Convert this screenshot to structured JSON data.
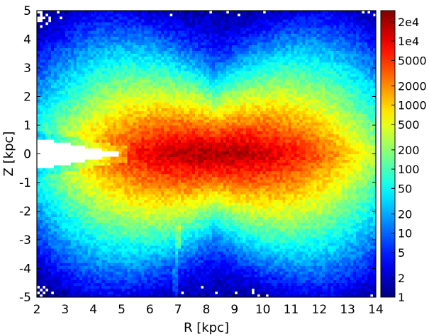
{
  "chart_data": {
    "type": "heatmap",
    "title": "",
    "xlabel": "R [kpc]",
    "ylabel": "Z [kpc]",
    "xlim": [
      2,
      14
    ],
    "ylim": [
      -5,
      5
    ],
    "x_ticks": [
      2,
      3,
      4,
      5,
      6,
      7,
      8,
      9,
      10,
      11,
      12,
      13,
      14
    ],
    "x_tick_labels": [
      "2",
      "3",
      "4",
      "5",
      "6",
      "7",
      "8",
      "9",
      "10",
      "11",
      "12",
      "13",
      "14"
    ],
    "y_ticks": [
      -5,
      -4,
      -3,
      -2,
      -1,
      0,
      1,
      2,
      3,
      4,
      5
    ],
    "y_tick_labels": [
      "-5",
      "-4",
      "-3",
      "-2",
      "-1",
      "0",
      "1",
      "2",
      "3",
      "4",
      "5"
    ],
    "bins": {
      "nx": 120,
      "ny": 100
    },
    "colorbar": {
      "scale": "log",
      "min": 1,
      "max": 30000,
      "ticks": [
        1,
        2,
        5,
        10,
        20,
        50,
        100,
        200,
        500,
        1000,
        2000,
        5000,
        10000,
        20000
      ],
      "tick_labels": [
        "1",
        "2",
        "5",
        "10",
        "20",
        "50",
        "100",
        "200",
        "500",
        "1000",
        "2000",
        "5000",
        "1e4",
        "2e4"
      ],
      "colormap": "jet",
      "colors": [
        "#00007f",
        "#0000ff",
        "#007fff",
        "#00ffff",
        "#7fff7f",
        "#ffff00",
        "#ff7f00",
        "#ff0000",
        "#7f0000"
      ]
    },
    "density_model": {
      "peak": {
        "R": 8.3,
        "Z": 0.0,
        "count": 20000
      },
      "radial_scale": 2.6,
      "vertical_scale": 0.9,
      "empty_wedge_near_R": [
        2,
        5
      ],
      "empty_regions": "corners of the plane, outside |Z| ~ 3.5 kpc"
    }
  }
}
